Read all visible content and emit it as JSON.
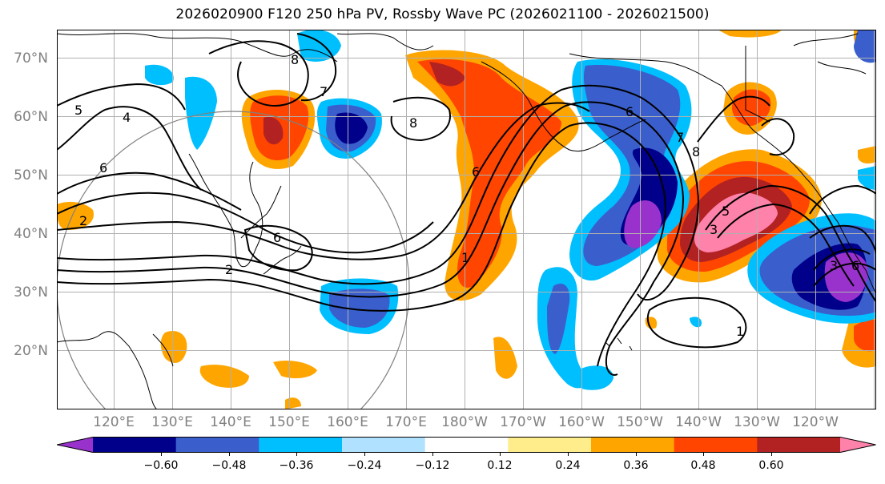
{
  "title": "2026020900 F120 250 hPa PV, Rossby Wave PC (2026021100 - 2026021500)",
  "lat_labels": [
    "70°N",
    "60°N",
    "50°N",
    "40°N",
    "30°N",
    "20°N"
  ],
  "lon_labels": [
    "120°E",
    "130°E",
    "140°E",
    "150°E",
    "160°E",
    "170°E",
    "180°W",
    "170°W",
    "160°W",
    "150°W",
    "140°W",
    "130°W",
    "120°W"
  ],
  "colorbar": {
    "ticks": [
      "−0.60",
      "−0.48",
      "−0.36",
      "−0.24",
      "−0.12",
      "0.12",
      "0.24",
      "0.36",
      "0.48",
      "0.60"
    ],
    "colors": [
      "#9932cc",
      "#00008b",
      "#3a5fcd",
      "#00bfff",
      "#b0e2ff",
      "#ffffff",
      "#ffec8b",
      "#ffa500",
      "#ff4500",
      "#b22222",
      "#ff82ab"
    ]
  },
  "contour_labels": {
    "c1": "5",
    "c2": "4",
    "c3": "6",
    "c4": "2",
    "c5": "8",
    "c6": "7",
    "c7": "8",
    "c8": "6",
    "c9": "6",
    "c10": "1",
    "c11": "6",
    "c12": "7",
    "c13": "8",
    "c14": "5",
    "c15": "3",
    "c16": "1",
    "c17": "3",
    "c18": "6",
    "c19": "2"
  },
  "icons": {
    "colorbar-left-extend": "triangle-left",
    "colorbar-right-extend": "triangle-right"
  }
}
